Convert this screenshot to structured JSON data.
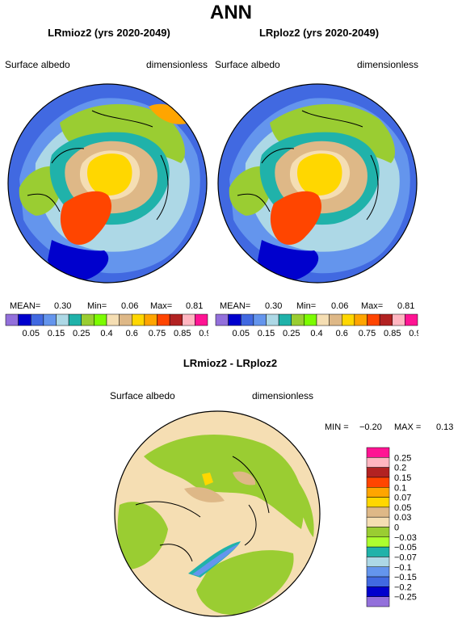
{
  "page": {
    "title": "ANN"
  },
  "panels": [
    {
      "title": "LRmioz2 (yrs 2020-2049)",
      "variable": "Surface albedo",
      "units": "dimensionless",
      "stats": {
        "mean_label": "MEAN=",
        "mean": "0.30",
        "min_label": "Min=",
        "min": "0.06",
        "max_label": "Max=",
        "max": "0.81"
      }
    },
    {
      "title": "LRploz2 (yrs 2020-2049)",
      "variable": "Surface albedo",
      "units": "dimensionless",
      "stats": {
        "mean_label": "MEAN=",
        "mean": "0.30",
        "min_label": "Min=",
        "min": "0.06",
        "max_label": "Max=",
        "max": "0.81"
      }
    }
  ],
  "diff_panel": {
    "title": "LRmioz2 - LRploz2",
    "variable": "Surface albedo",
    "units": "dimensionless",
    "stats": {
      "min_label": "MIN =",
      "min": "−0.20",
      "max_label": "MAX =",
      "max": "0.13"
    }
  },
  "chart_data": [
    {
      "type": "heatmap",
      "projection": "north polar stereographic",
      "title": "LRmioz2 (yrs 2020-2049)",
      "legend_placement": "bottom (horizontal)",
      "levels": [
        "0.05",
        "0.15",
        "0.25",
        "0.4",
        "0.6",
        "0.75",
        "0.85",
        "0.95"
      ],
      "colors": [
        "#9370db",
        "#0000cd",
        "#4169e1",
        "#6495ed",
        "#add8e6",
        "#20b2aa",
        "#9acd32",
        "#7cfc00",
        "#f5deb3",
        "#deb887",
        "#ffd700",
        "#ffa500",
        "#ff4500",
        "#b22222",
        "#ffb6c1",
        "#ff1493"
      ],
      "mean": 0.3,
      "min": 0.06,
      "max": 0.81
    },
    {
      "type": "heatmap",
      "projection": "north polar stereographic",
      "title": "LRploz2 (yrs 2020-2049)",
      "legend_placement": "bottom (horizontal)",
      "levels": [
        "0.05",
        "0.15",
        "0.25",
        "0.4",
        "0.6",
        "0.75",
        "0.85",
        "0.95"
      ],
      "colors": [
        "#9370db",
        "#0000cd",
        "#4169e1",
        "#6495ed",
        "#add8e6",
        "#20b2aa",
        "#9acd32",
        "#7cfc00",
        "#f5deb3",
        "#deb887",
        "#ffd700",
        "#ffa500",
        "#ff4500",
        "#b22222",
        "#ffb6c1",
        "#ff1493"
      ],
      "mean": 0.3,
      "min": 0.06,
      "max": 0.81
    },
    {
      "type": "heatmap",
      "projection": "north polar stereographic",
      "title": "LRmioz2 - LRploz2",
      "legend_placement": "right (vertical)",
      "levels": [
        "0.25",
        "0.2",
        "0.15",
        "0.1",
        "0.07",
        "0.05",
        "0.03",
        "0",
        "−0.03",
        "−0.05",
        "−0.07",
        "−0.1",
        "−0.15",
        "−0.2",
        "−0.25"
      ],
      "colors": [
        "#ff1493",
        "#ffb6c1",
        "#b22222",
        "#ff4500",
        "#ffa500",
        "#ffd700",
        "#deb887",
        "#f5deb3",
        "#9acd32",
        "#adff2f",
        "#20b2aa",
        "#add8e6",
        "#6495ed",
        "#4169e1",
        "#0000cd",
        "#9370db"
      ],
      "min": -0.2,
      "max": 0.13
    }
  ]
}
